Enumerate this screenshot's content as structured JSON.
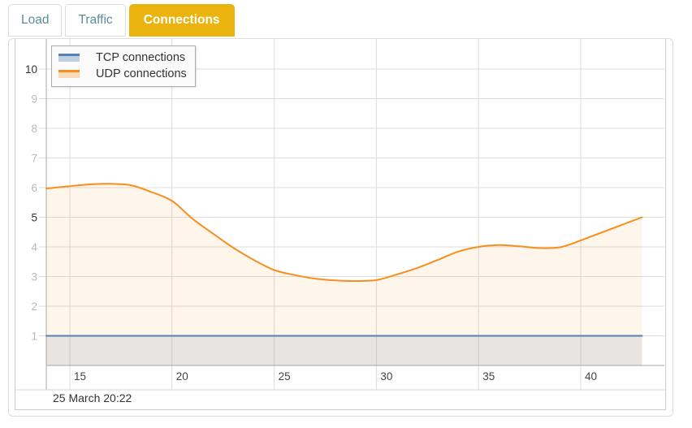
{
  "tabs": {
    "items": [
      {
        "id": "load",
        "label": "Load",
        "active": false
      },
      {
        "id": "traffic",
        "label": "Traffic",
        "active": false
      },
      {
        "id": "connections",
        "label": "Connections",
        "active": true
      }
    ]
  },
  "colors": {
    "active_tab_bg": "#eab30e",
    "active_tab_text": "#ffffff",
    "inactive_tab_text": "#5e8d96",
    "grid": "#dcdcdc",
    "axis": "#a8a8a8",
    "band_separator": "#d6d6d6",
    "y_label_minor": "#b9b9b9",
    "y_label_major": "#333333",
    "x_label": "#444444",
    "tcp": "#5780b3",
    "udp": "#f78f1e"
  },
  "legend": {
    "items": [
      {
        "label": "TCP connections",
        "color": "#5780b3",
        "fill": "rgba(87,128,179,0.35)"
      },
      {
        "label": "UDP connections",
        "color": "#f78f1e",
        "fill": "rgba(247,143,30,0.30)"
      }
    ]
  },
  "footer": {
    "timestamp": "25 March 20:22"
  },
  "chart_data": {
    "type": "area",
    "title": "",
    "xlabel": "",
    "ylabel": "",
    "grid": true,
    "legend_position": "top-left",
    "x_axis": {
      "ticks": [
        15,
        20,
        25,
        30,
        35,
        40
      ],
      "range": [
        13.85,
        44.1
      ]
    },
    "y_axis": {
      "ticks": [
        1,
        2,
        3,
        4,
        5,
        6,
        7,
        8,
        9,
        10
      ],
      "major_ticks": [
        5,
        10
      ],
      "range": [
        0,
        11.05
      ]
    },
    "series": [
      {
        "name": "TCP connections",
        "color": "#5780b3",
        "fill": "rgba(87,128,179,0.14)",
        "points": [
          [
            13.85,
            1
          ],
          [
            20,
            1
          ],
          [
            25,
            1
          ],
          [
            30,
            1
          ],
          [
            35,
            1
          ],
          [
            40,
            1
          ],
          [
            43,
            1
          ]
        ]
      },
      {
        "name": "UDP connections",
        "color": "#f78f1e",
        "fill": "rgba(247,143,30,0.09)",
        "points": [
          [
            13.85,
            5.97
          ],
          [
            15,
            6.05
          ],
          [
            16,
            6.11
          ],
          [
            17,
            6.13
          ],
          [
            18,
            6.08
          ],
          [
            19,
            5.85
          ],
          [
            20,
            5.55
          ],
          [
            21,
            4.95
          ],
          [
            22,
            4.45
          ],
          [
            23,
            3.97
          ],
          [
            24,
            3.56
          ],
          [
            25,
            3.22
          ],
          [
            26,
            3.05
          ],
          [
            27,
            2.93
          ],
          [
            28,
            2.87
          ],
          [
            29,
            2.85
          ],
          [
            30,
            2.88
          ],
          [
            31,
            3.07
          ],
          [
            32,
            3.29
          ],
          [
            33,
            3.56
          ],
          [
            34,
            3.84
          ],
          [
            35,
            4.0
          ],
          [
            36,
            4.06
          ],
          [
            37,
            4.02
          ],
          [
            38,
            3.96
          ],
          [
            39,
            3.99
          ],
          [
            40,
            4.22
          ],
          [
            41,
            4.48
          ],
          [
            42,
            4.74
          ],
          [
            43,
            5.0
          ]
        ]
      }
    ],
    "footer_label": "25 March 20:22"
  }
}
